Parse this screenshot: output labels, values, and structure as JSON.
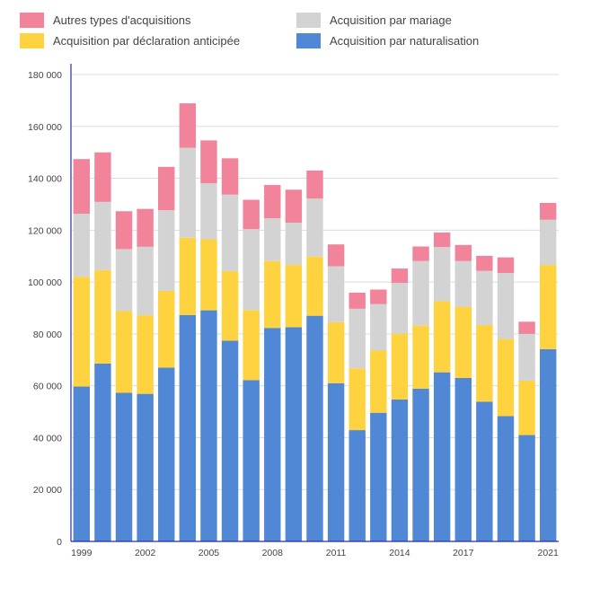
{
  "legend": [
    {
      "label": "Autres types d'acquisitions",
      "color": "#F1839A"
    },
    {
      "label": "Acquisition par mariage",
      "color": "#D3D3D3"
    },
    {
      "label": "Acquisition par déclaration anticipée",
      "color": "#FFD23F"
    },
    {
      "label": "Acquisition par naturalisation",
      "color": "#5088D6"
    }
  ],
  "chart_data": {
    "type": "bar",
    "stacked": true,
    "categories": [
      "1999",
      "2000",
      "2001",
      "2002",
      "2003",
      "2004",
      "2005",
      "2006",
      "2007",
      "2008",
      "2009",
      "2010",
      "2011",
      "2012",
      "2013",
      "2014",
      "2015",
      "2016",
      "2017",
      "2018",
      "2019",
      "2020",
      "2021"
    ],
    "x_tick_labels": [
      "1999",
      "2002",
      "2005",
      "2008",
      "2011",
      "2014",
      "2017",
      "2021"
    ],
    "series": [
      {
        "name": "Acquisition par naturalisation",
        "color": "#5088D6",
        "values": [
          59700,
          68600,
          57300,
          56900,
          67000,
          87300,
          89100,
          77400,
          62200,
          82300,
          82600,
          87000,
          61000,
          42900,
          49600,
          54700,
          58900,
          65200,
          63000,
          53900,
          48300,
          41000,
          74100
        ]
      },
      {
        "name": "Acquisition par déclaration anticipée",
        "color": "#FFD23F",
        "values": [
          42300,
          36000,
          31500,
          30300,
          29600,
          29800,
          27400,
          26800,
          27000,
          25800,
          24000,
          22800,
          23500,
          23800,
          24100,
          25400,
          24300,
          27400,
          27500,
          29500,
          29800,
          21000,
          32500
        ]
      },
      {
        "name": "Acquisition par mariage",
        "color": "#D3D3D3",
        "values": [
          24300,
          26300,
          23900,
          26400,
          31100,
          34700,
          21600,
          29500,
          31200,
          16500,
          16300,
          22400,
          21600,
          23000,
          17800,
          19600,
          24900,
          20900,
          17600,
          20900,
          25400,
          18000,
          17400
        ]
      },
      {
        "name": "Autres types d'acquisitions",
        "color": "#F1839A",
        "values": [
          21100,
          19100,
          14600,
          14600,
          16700,
          17100,
          16500,
          14000,
          11300,
          12800,
          12700,
          10800,
          8400,
          6200,
          5600,
          5500,
          5600,
          5600,
          6200,
          5800,
          6000,
          4700,
          6500
        ]
      }
    ],
    "y_ticks": [
      0,
      20000,
      40000,
      60000,
      80000,
      100000,
      120000,
      140000,
      160000,
      180000
    ],
    "y_tick_labels": [
      "0",
      "20 000",
      "40 000",
      "60 000",
      "80 000",
      "100 000",
      "120 000",
      "140 000",
      "160 000",
      "180 000"
    ],
    "ylim": [
      0,
      180000
    ],
    "grid": true,
    "legend_position": "top"
  }
}
